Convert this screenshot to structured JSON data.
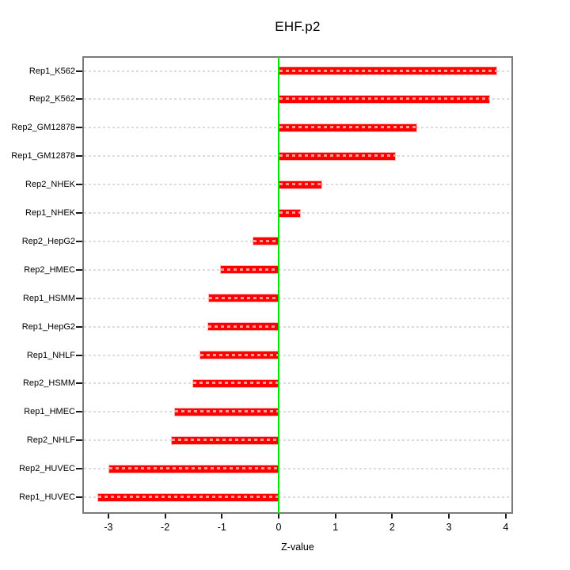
{
  "chart_data": {
    "type": "bar",
    "orientation": "horizontal",
    "title": "EHF.p2",
    "xlabel": "Z-value",
    "ylabel": "",
    "categories": [
      "Rep1_K562",
      "Rep2_K562",
      "Rep2_GM12878",
      "Rep1_GM12878",
      "Rep2_NHEK",
      "Rep1_NHEK",
      "Rep2_HepG2",
      "Rep2_HMEC",
      "Rep1_HSMM",
      "Rep1_HepG2",
      "Rep1_NHLF",
      "Rep2_HSMM",
      "Rep1_HMEC",
      "Rep2_NHLF",
      "Rep2_HUVEC",
      "Rep1_HUVEC"
    ],
    "values": [
      3.85,
      3.72,
      2.44,
      2.06,
      0.77,
      0.39,
      -0.46,
      -1.03,
      -1.24,
      -1.26,
      -1.4,
      -1.52,
      -1.84,
      -1.9,
      -3.0,
      -3.19
    ],
    "x_ticks": [
      -3,
      -2,
      -1,
      0,
      1,
      2,
      3,
      4
    ],
    "xlim": [
      -3.46,
      4.13
    ],
    "grid": true,
    "legend": "none",
    "zero_reference_line": 0,
    "colors": {
      "bar_fill": "#ff0000",
      "bar_border": "#ffb3b3",
      "zero_line": "#00e600",
      "gridline": "#dcdcdc",
      "plot_border": "#7a7a7a",
      "text": "#000000"
    }
  }
}
